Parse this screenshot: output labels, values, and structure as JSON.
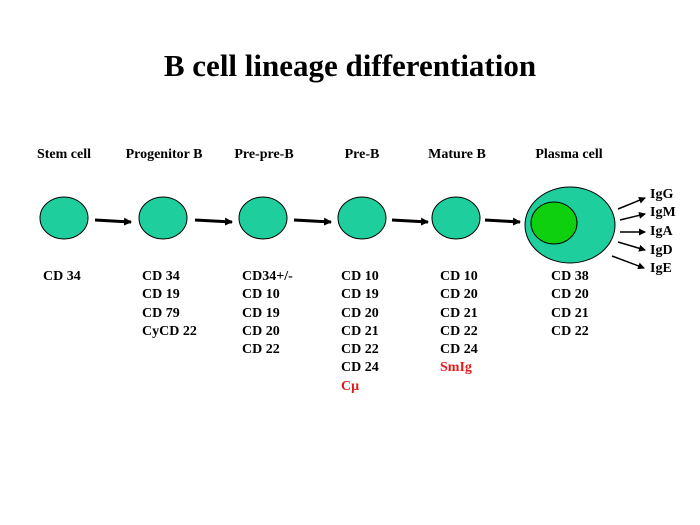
{
  "title": "B cell lineage differentiation",
  "colors": {
    "cell_fill": "#1ecf9d",
    "nucleus_fill": "#0fd00f",
    "marker_highlight": "#e31b1b"
  },
  "stages": [
    {
      "label": "Stem cell",
      "markers": [
        {
          "text": "CD 34"
        }
      ]
    },
    {
      "label": "Progenitor B",
      "markers": [
        {
          "text": "CD 34"
        },
        {
          "text": "CD 19"
        },
        {
          "text": "CD 79"
        },
        {
          "text": "CyCD 22"
        }
      ]
    },
    {
      "label": "Pre-pre-B",
      "markers": [
        {
          "text": "CD34+/-"
        },
        {
          "text": "CD 10"
        },
        {
          "text": "CD 19"
        },
        {
          "text": "CD 20"
        },
        {
          "text": "CD 22"
        }
      ]
    },
    {
      "label": "Pre-B",
      "markers": [
        {
          "text": "CD 10"
        },
        {
          "text": "CD 19"
        },
        {
          "text": "CD 20"
        },
        {
          "text": "CD 21"
        },
        {
          "text": "CD 22"
        },
        {
          "text": "CD 24"
        },
        {
          "text": "Cμ",
          "highlight": true
        }
      ]
    },
    {
      "label": "Mature B",
      "markers": [
        {
          "text": "CD 10"
        },
        {
          "text": "CD 20"
        },
        {
          "text": "CD 21"
        },
        {
          "text": "CD 22"
        },
        {
          "text": "CD 24"
        },
        {
          "text": "SmIg",
          "highlight": true
        }
      ]
    },
    {
      "label": "Plasma cell",
      "markers": [
        {
          "text": "CD 38"
        },
        {
          "text": "CD 20"
        },
        {
          "text": "CD 21"
        },
        {
          "text": "CD 22"
        }
      ]
    }
  ],
  "immunoglobulins": [
    "IgG",
    "IgM",
    "IgA",
    "IgD",
    "IgE"
  ]
}
